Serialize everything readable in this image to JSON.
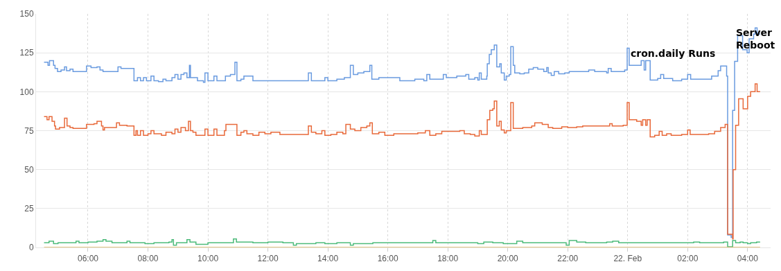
{
  "chart_data": {
    "type": "step",
    "xlim": [
      "--02-21T04:16",
      "--02-22T04:46"
    ],
    "xticks": [
      {
        "value": "--02-21T06:00",
        "label": "06:00"
      },
      {
        "value": "--02-21T08:00",
        "label": "08:00"
      },
      {
        "value": "--02-21T10:00",
        "label": "10:00"
      },
      {
        "value": "--02-21T12:00",
        "label": "12:00"
      },
      {
        "value": "--02-21T14:00",
        "label": "14:00"
      },
      {
        "value": "--02-21T16:00",
        "label": "16:00"
      },
      {
        "value": "--02-21T18:00",
        "label": "18:00"
      },
      {
        "value": "--02-21T20:00",
        "label": "20:00"
      },
      {
        "value": "--02-21T22:00",
        "label": "22:00"
      },
      {
        "value": "--02-22T00:00",
        "label": "22. Feb"
      },
      {
        "value": "--02-22T02:00",
        "label": "02:00"
      },
      {
        "value": "--02-22T04:00",
        "label": "04:00"
      }
    ],
    "ylim": [
      0,
      150
    ],
    "yticks": [
      0,
      25,
      50,
      75,
      100,
      125,
      150
    ],
    "grid": true,
    "annotations": [
      "cron.daily Runs",
      "Server\nReboot"
    ],
    "series": [
      {
        "color": "#6a9be0",
        "x": [
          "--02-21T04:32",
          "--02-21T04:40",
          "--02-21T04:43",
          "--02-21T04:51",
          "--02-21T04:54",
          "--02-21T04:59",
          "--02-21T05:06",
          "--02-21T05:13",
          "--02-21T05:17",
          "--02-21T05:24",
          "--02-21T05:30",
          "--02-21T05:36",
          "--02-21T05:57",
          "--02-21T06:06",
          "--02-21T06:18",
          "--02-21T06:24",
          "--02-21T06:30",
          "--02-21T06:57",
          "--02-21T07:00",
          "--02-21T07:06",
          "--02-21T07:32",
          "--02-21T07:39",
          "--02-21T07:45",
          "--02-21T07:51",
          "--02-21T07:57",
          "--02-21T08:06",
          "--02-21T08:12",
          "--02-21T08:21",
          "--02-21T08:30",
          "--02-21T08:36",
          "--02-21T08:48",
          "--02-21T08:54",
          "--02-21T09:00",
          "--02-21T09:06",
          "--02-21T09:12",
          "--02-21T09:18",
          "--02-21T09:23",
          "--02-21T09:25",
          "--02-21T09:39",
          "--02-21T09:51",
          "--02-21T09:54",
          "--02-21T10:00",
          "--02-21T10:12",
          "--02-21T10:18",
          "--02-21T10:35",
          "--02-21T10:45",
          "--02-21T10:54",
          "--02-21T10:58",
          "--02-21T11:06",
          "--02-21T11:12",
          "--02-21T11:30",
          "--02-21T13:21",
          "--02-21T13:27",
          "--02-21T13:54",
          "--02-21T14:00",
          "--02-21T14:18",
          "--02-21T14:33",
          "--02-21T14:45",
          "--02-21T14:51",
          "--02-21T15:00",
          "--02-21T15:12",
          "--02-21T15:24",
          "--02-21T15:28",
          "--02-21T15:42",
          "--02-21T16:15",
          "--02-21T16:24",
          "--02-21T16:54",
          "--02-21T17:12",
          "--02-21T17:18",
          "--02-21T17:24",
          "--02-21T17:51",
          "--02-21T17:57",
          "--02-21T18:18",
          "--02-21T18:36",
          "--02-21T18:42",
          "--02-21T18:54",
          "--02-21T19:00",
          "--02-21T19:03",
          "--02-21T19:07",
          "--02-21T19:18",
          "--02-21T19:19",
          "--02-21T19:23",
          "--02-21T19:27",
          "--02-21T19:33",
          "--02-21T19:38",
          "--02-21T19:44",
          "--02-21T19:47",
          "--02-21T19:53",
          "--02-21T19:57",
          "--02-21T20:03",
          "--02-21T20:06",
          "--02-21T20:11",
          "--02-21T20:14",
          "--02-21T20:24",
          "--02-21T20:33",
          "--02-21T20:42",
          "--02-21T20:51",
          "--02-21T21:00",
          "--02-21T21:12",
          "--02-21T21:18",
          "--02-21T21:21",
          "--02-21T21:27",
          "--02-21T21:33",
          "--02-21T21:42",
          "--02-21T21:54",
          "--02-21T22:03",
          "--02-21T22:42",
          "--02-21T22:54",
          "--02-21T23:18",
          "--02-21T23:21",
          "--02-21T23:27",
          "--02-21T23:54",
          "--02-21T23:59",
          "--02-22T00:03",
          "--02-22T00:27",
          "--02-22T00:33",
          "--02-22T00:36",
          "--02-22T00:45",
          "--02-22T01:00",
          "--02-22T01:06",
          "--02-22T01:12",
          "--02-22T01:30",
          "--02-22T01:48",
          "--02-22T02:00",
          "--02-22T02:06",
          "--02-22T02:48",
          "--02-22T03:01",
          "--02-22T03:06",
          "--02-22T03:18",
          "--02-22T03:20",
          "--02-22T03:27",
          "--02-22T03:30",
          "--02-22T03:34",
          "--02-22T03:40",
          "--02-22T03:50",
          "--02-22T03:59",
          "--02-22T04:03",
          "--02-22T04:12",
          "--02-22T04:15",
          "--02-22T04:19",
          "--02-22T04:25"
        ],
        "values": [
          119,
          117,
          120,
          117,
          115,
          113,
          114,
          116,
          113.5,
          114.5,
          113,
          113,
          116.5,
          115.5,
          116,
          114,
          113,
          113,
          116,
          115,
          107,
          109,
          107,
          109,
          107,
          110,
          107,
          106.5,
          108,
          107,
          109,
          111,
          108,
          111,
          112,
          109,
          117,
          109,
          107,
          106,
          112,
          107,
          110,
          107,
          110,
          111,
          119,
          107,
          108,
          110,
          107,
          112,
          107,
          109,
          107,
          108,
          109,
          117,
          111,
          112,
          113,
          117,
          108,
          109,
          109,
          107,
          108,
          107,
          111,
          108,
          111,
          109,
          110,
          111,
          108,
          109,
          107.5,
          112,
          108,
          110,
          118,
          124,
          127,
          130,
          116,
          118,
          112,
          107.5,
          110,
          111,
          129,
          117,
          112,
          111.5,
          112,
          114.5,
          115.5,
          114.5,
          113,
          115.5,
          112,
          110.5,
          113,
          111.5,
          112,
          113,
          114,
          113,
          112,
          115,
          113,
          114,
          128,
          117,
          120,
          114,
          120,
          107.5,
          108.5,
          111,
          108.5,
          107,
          108,
          111,
          108,
          110,
          113.5,
          116.5,
          110,
          8,
          6.5,
          88,
          119.5,
          136,
          127,
          125,
          134,
          137,
          141,
          137,
          137
        ]
      },
      {
        "color": "#e8693a",
        "x": [
          "--02-21T04:32",
          "--02-21T04:38",
          "--02-21T04:42",
          "--02-21T04:48",
          "--02-21T04:53",
          "--02-21T04:55",
          "--02-21T05:03",
          "--02-21T05:13",
          "--02-21T05:18",
          "--02-21T05:24",
          "--02-21T05:30",
          "--02-21T05:57",
          "--02-21T06:12",
          "--02-21T06:18",
          "--02-21T06:27",
          "--02-21T06:30",
          "--02-21T06:33",
          "--02-21T06:57",
          "--02-21T07:03",
          "--02-21T07:18",
          "--02-21T07:32",
          "--02-21T07:36",
          "--02-21T07:39",
          "--02-21T07:45",
          "--02-21T07:51",
          "--02-21T08:00",
          "--02-21T08:06",
          "--02-21T08:12",
          "--02-21T08:27",
          "--02-21T08:36",
          "--02-21T08:48",
          "--02-21T08:54",
          "--02-21T09:00",
          "--02-21T09:06",
          "--02-21T09:15",
          "--02-21T09:21",
          "--02-21T09:25",
          "--02-21T09:30",
          "--02-21T09:36",
          "--02-21T09:54",
          "--02-21T10:00",
          "--02-21T10:12",
          "--02-21T10:18",
          "--02-21T10:33",
          "--02-21T10:36",
          "--02-21T10:58",
          "--02-21T11:06",
          "--02-21T11:12",
          "--02-21T11:18",
          "--02-21T11:30",
          "--02-21T11:42",
          "--02-21T11:54",
          "--02-21T12:06",
          "--02-21T12:24",
          "--02-21T13:21",
          "--02-21T13:27",
          "--02-21T13:36",
          "--02-21T13:48",
          "--02-21T13:54",
          "--02-21T14:06",
          "--02-21T14:18",
          "--02-21T14:30",
          "--02-21T14:36",
          "--02-21T14:45",
          "--02-21T14:54",
          "--02-21T15:06",
          "--02-21T15:18",
          "--02-21T15:24",
          "--02-21T15:29",
          "--02-21T15:42",
          "--02-21T15:54",
          "--02-21T16:12",
          "--02-21T17:00",
          "--02-21T17:15",
          "--02-21T17:24",
          "--02-21T17:36",
          "--02-21T17:48",
          "--02-21T18:24",
          "--02-21T18:33",
          "--02-21T18:45",
          "--02-21T18:54",
          "--02-21T19:03",
          "--02-21T19:07",
          "--02-21T19:19",
          "--02-21T19:24",
          "--02-21T19:30",
          "--02-21T19:33",
          "--02-21T19:38",
          "--02-21T19:43",
          "--02-21T19:47",
          "--02-21T19:53",
          "--02-21T19:57",
          "--02-21T20:06",
          "--02-21T20:11",
          "--02-21T20:30",
          "--02-21T20:48",
          "--02-21T20:54",
          "--02-21T21:09",
          "--02-21T21:21",
          "--02-21T21:30",
          "--02-21T21:48",
          "--02-21T22:00",
          "--02-21T22:18",
          "--02-21T22:30",
          "--02-21T23:24",
          "--02-21T23:29",
          "--02-21T23:51",
          "--02-21T23:59",
          "--02-22T00:03",
          "--02-22T00:18",
          "--02-22T00:27",
          "--02-22T00:30",
          "--02-22T00:36",
          "--02-22T00:39",
          "--02-22T00:45",
          "--02-22T00:54",
          "--02-22T01:03",
          "--02-22T01:09",
          "--02-22T01:18",
          "--02-22T01:27",
          "--02-22T01:48",
          "--02-22T02:00",
          "--02-22T02:05",
          "--02-22T02:42",
          "--02-22T02:54",
          "--02-22T03:06",
          "--02-22T03:15",
          "--02-22T03:20",
          "--02-22T03:30",
          "--02-22T03:31",
          "--02-22T03:36",
          "--02-22T03:42",
          "--02-22T03:51",
          "--02-22T04:00",
          "--02-22T04:06",
          "--02-22T04:15",
          "--02-22T04:19",
          "--02-22T04:25"
        ],
        "values": [
          84,
          82,
          84,
          81,
          78,
          76,
          77,
          83,
          78,
          77,
          76.5,
          79,
          79.5,
          81,
          78,
          75.5,
          77,
          80,
          78.5,
          78,
          72,
          75,
          72,
          75,
          72,
          73,
          75,
          73,
          72,
          74,
          73,
          76,
          74,
          77,
          75,
          81,
          75,
          74,
          72,
          76,
          72,
          76,
          72,
          75,
          79,
          72,
          74,
          75,
          73,
          72,
          74,
          73,
          74,
          72.5,
          78,
          74,
          73,
          75,
          72,
          72.5,
          74,
          73,
          79,
          76,
          75,
          77,
          78,
          80,
          73,
          74,
          72,
          73,
          73.5,
          75,
          72,
          73,
          74.5,
          75,
          73,
          72.5,
          71.5,
          75,
          72.5,
          82,
          88,
          89,
          94,
          78,
          81,
          75.5,
          73.5,
          75,
          93,
          76.5,
          77,
          78,
          80,
          79,
          77,
          76.5,
          77.5,
          77,
          77.5,
          78,
          79.5,
          78,
          78.5,
          93,
          82,
          81,
          78.5,
          82,
          78.5,
          82,
          71,
          72,
          74.5,
          72,
          73,
          72,
          72.5,
          75.5,
          72.5,
          73,
          74.5,
          77,
          79,
          8.5,
          5.5,
          50,
          78.5,
          95.5,
          89,
          97,
          100,
          105,
          100,
          100
        ]
      },
      {
        "color": "#4dbb7a",
        "x": [
          "--02-21T04:32",
          "--02-21T04:42",
          "--02-21T04:51",
          "--02-21T05:00",
          "--02-21T05:36",
          "--02-21T05:42",
          "--02-21T06:00",
          "--02-21T06:18",
          "--02-21T06:30",
          "--02-21T06:36",
          "--02-21T06:48",
          "--02-21T07:18",
          "--02-21T07:24",
          "--02-21T07:54",
          "--02-21T08:12",
          "--02-21T08:42",
          "--02-21T08:48",
          "--02-21T08:51",
          "--02-21T08:57",
          "--02-21T09:18",
          "--02-21T09:24",
          "--02-21T09:36",
          "--02-21T10:00",
          "--02-21T10:51",
          "--02-21T10:57",
          "--02-21T11:30",
          "--02-21T12:00",
          "--02-21T12:30",
          "--02-21T12:51",
          "--02-21T12:57",
          "--02-21T13:36",
          "--02-21T13:54",
          "--02-21T14:18",
          "--02-21T14:45",
          "--02-21T14:51",
          "--02-21T15:30",
          "--02-21T17:30",
          "--02-21T17:36",
          "--02-21T19:00",
          "--02-21T19:12",
          "--02-21T19:30",
          "--02-21T19:51",
          "--02-21T20:18",
          "--02-21T20:30",
          "--02-21T21:57",
          "--02-21T22:03",
          "--02-21T22:18",
          "--02-21T22:36",
          "--02-21T23:18",
          "--02-21T23:30",
          "--02-21T23:42",
          "--02-22T02:12",
          "--02-22T02:24",
          "--02-22T03:12",
          "--02-22T03:20",
          "--02-22T03:30",
          "--02-22T03:36",
          "--02-22T03:45",
          "--02-22T03:51",
          "--02-22T04:00",
          "--02-22T04:06",
          "--02-22T04:18",
          "--02-22T04:25"
        ],
        "values": [
          3,
          4,
          2.5,
          3,
          4,
          3,
          3.5,
          4,
          5,
          4,
          3,
          4,
          3,
          2.5,
          3,
          3.5,
          5,
          1.5,
          3,
          5,
          3.5,
          2,
          3,
          5.5,
          3.5,
          3,
          3.5,
          3,
          1.5,
          2.5,
          3,
          2.5,
          3,
          1.5,
          2.5,
          3,
          4.5,
          3,
          2.5,
          3.5,
          3,
          2.5,
          4,
          3,
          1.5,
          4.5,
          3.5,
          3,
          3.5,
          4,
          3,
          3.5,
          3,
          3.5,
          0.5,
          4.5,
          3,
          3.5,
          3,
          2.5,
          3,
          3.5,
          3.5
        ]
      },
      {
        "color": "#dcb65c",
        "x": [
          "--02-21T04:32",
          "--02-22T04:25"
        ],
        "values": [
          0,
          0
        ]
      }
    ]
  }
}
